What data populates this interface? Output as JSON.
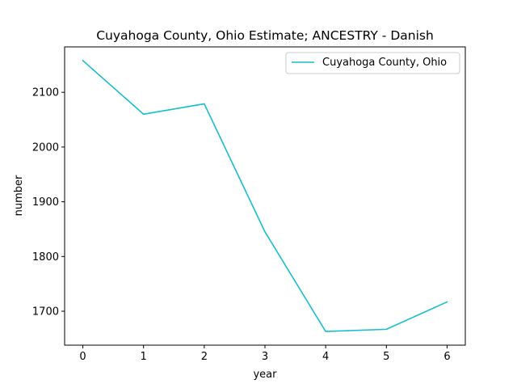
{
  "chart_data": {
    "type": "line",
    "title": "Cuyahoga County, Ohio Estimate; ANCESTRY - Danish",
    "xlabel": "year",
    "ylabel": "number",
    "x": [
      0,
      1,
      2,
      3,
      4,
      5,
      6
    ],
    "series": [
      {
        "name": "Cuyahoga County, Ohio",
        "color": "#17becf",
        "values": [
          2158,
          2060,
          2079,
          1845,
          1663,
          1667,
          1717
        ]
      }
    ],
    "xlim": [
      -0.3,
      6.3
    ],
    "ylim": [
      1638,
      2183
    ],
    "xticks": [
      0,
      1,
      2,
      3,
      4,
      5,
      6
    ],
    "yticks": [
      1700,
      1800,
      1900,
      2000,
      2100
    ],
    "grid": false,
    "legend_position": "upper right"
  }
}
